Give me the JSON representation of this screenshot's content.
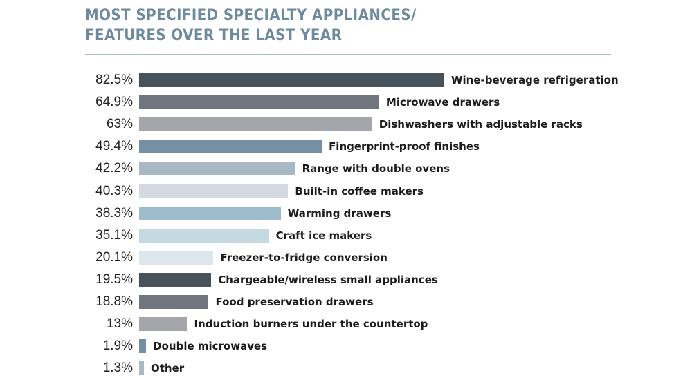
{
  "title": {
    "line1": "MOST SPECIFIED SPECIALTY APPLIANCES/",
    "line2": "FEATURES OVER THE LAST YEAR"
  },
  "chart_data": {
    "type": "bar",
    "orientation": "horizontal",
    "title": "MOST SPECIFIED SPECIALTY APPLIANCES/ FEATURES OVER THE LAST YEAR",
    "xlabel": "",
    "ylabel": "",
    "grid": false,
    "legend": "none",
    "xlim": [
      0,
      100
    ],
    "categories": [
      "Wine-beverage refrigeration",
      "Microwave drawers",
      "Dishwashers with adjustable racks",
      "Fingerprint-proof finishes",
      "Range with double ovens",
      "Built-in coffee makers",
      "Warming drawers",
      "Craft ice makers",
      "Freezer-to-fridge conversion",
      "Chargeable/wireless small appliances",
      "Food preservation drawers",
      "Induction burners under the countertop",
      "Double microwaves",
      "Other"
    ],
    "values": [
      82.5,
      64.9,
      63,
      49.4,
      42.2,
      40.3,
      38.3,
      35.1,
      20.1,
      19.5,
      18.8,
      13,
      1.9,
      1.3
    ],
    "value_labels": [
      "82.5%",
      "64.9%",
      "63%",
      "49.4%",
      "42.2%",
      "40.3%",
      "38.3%",
      "35.1%",
      "20.1%",
      "19.5%",
      "18.8%",
      "13%",
      "1.9%",
      "1.3%"
    ],
    "colors": [
      "#46535d",
      "#71757e",
      "#a5a6ab",
      "#7590a4",
      "#a8b8c5",
      "#d3d9de",
      "#9dbccb",
      "#c5d9e1",
      "#dde6ea",
      "#46535d",
      "#71757e",
      "#a5a6ab",
      "#7590a4",
      "#a8b8c5"
    ]
  }
}
